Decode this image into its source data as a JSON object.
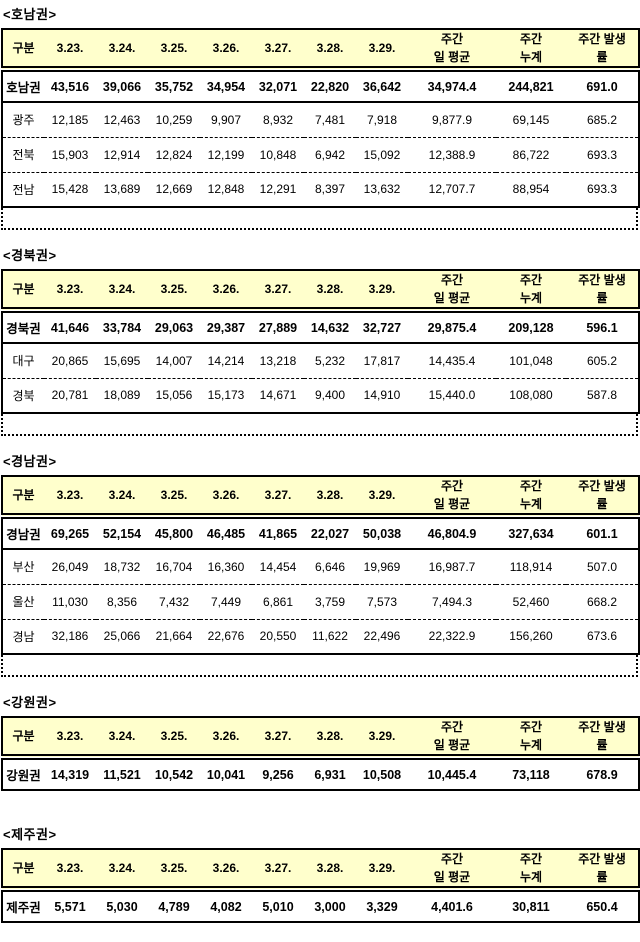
{
  "report": {
    "header_bg": "#ffffcc",
    "border_color": "#000000",
    "columns": [
      "구분",
      "3.23.",
      "3.24.",
      "3.25.",
      "3.26.",
      "3.27.",
      "3.28.",
      "3.29.",
      "주간\n일 평균",
      "주간\n누계",
      "주간 발생\n률"
    ],
    "tables": [
      {
        "title": "<호남권>",
        "trailing_dotted_row": true,
        "rows": [
          {
            "label": "호남권",
            "bold": true,
            "values": [
              "43,516",
              "39,066",
              "35,752",
              "34,954",
              "32,071",
              "22,820",
              "36,642",
              "34,974.4",
              "244,821",
              "691.0"
            ]
          },
          {
            "label": "광주",
            "bold": false,
            "values": [
              "12,185",
              "12,463",
              "10,259",
              "9,907",
              "8,932",
              "7,481",
              "7,918",
              "9,877.9",
              "69,145",
              "685.2"
            ]
          },
          {
            "label": "전북",
            "bold": false,
            "values": [
              "15,903",
              "12,914",
              "12,824",
              "12,199",
              "10,848",
              "6,942",
              "15,092",
              "12,388.9",
              "86,722",
              "693.3"
            ]
          },
          {
            "label": "전남",
            "bold": false,
            "values": [
              "15,428",
              "13,689",
              "12,669",
              "12,848",
              "12,291",
              "8,397",
              "13,632",
              "12,707.7",
              "88,954",
              "693.3"
            ]
          }
        ]
      },
      {
        "title": "<경북권>",
        "trailing_dotted_row": true,
        "rows": [
          {
            "label": "경북권",
            "bold": true,
            "values": [
              "41,646",
              "33,784",
              "29,063",
              "29,387",
              "27,889",
              "14,632",
              "32,727",
              "29,875.4",
              "209,128",
              "596.1"
            ]
          },
          {
            "label": "대구",
            "bold": false,
            "values": [
              "20,865",
              "15,695",
              "14,007",
              "14,214",
              "13,218",
              "5,232",
              "17,817",
              "14,435.4",
              "101,048",
              "605.2"
            ]
          },
          {
            "label": "경북",
            "bold": false,
            "values": [
              "20,781",
              "18,089",
              "15,056",
              "15,173",
              "14,671",
              "9,400",
              "14,910",
              "15,440.0",
              "108,080",
              "587.8"
            ]
          }
        ]
      },
      {
        "title": "<경남권>",
        "trailing_dotted_row": true,
        "rows": [
          {
            "label": "경남권",
            "bold": true,
            "values": [
              "69,265",
              "52,154",
              "45,800",
              "46,485",
              "41,865",
              "22,027",
              "50,038",
              "46,804.9",
              "327,634",
              "601.1"
            ]
          },
          {
            "label": "부산",
            "bold": false,
            "values": [
              "26,049",
              "18,732",
              "16,704",
              "16,360",
              "14,454",
              "6,646",
              "19,969",
              "16,987.7",
              "118,914",
              "507.0"
            ]
          },
          {
            "label": "울산",
            "bold": false,
            "values": [
              "11,030",
              "8,356",
              "7,432",
              "7,449",
              "6,861",
              "3,759",
              "7,573",
              "7,494.3",
              "52,460",
              "668.2"
            ]
          },
          {
            "label": "경남",
            "bold": false,
            "values": [
              "32,186",
              "25,066",
              "21,664",
              "22,676",
              "20,550",
              "11,622",
              "22,496",
              "22,322.9",
              "156,260",
              "673.6"
            ]
          }
        ]
      },
      {
        "title": "<강원권>",
        "trailing_dotted_row": false,
        "rows": [
          {
            "label": "강원권",
            "bold": true,
            "values": [
              "14,319",
              "11,521",
              "10,542",
              "10,041",
              "9,256",
              "6,931",
              "10,508",
              "10,445.4",
              "73,118",
              "678.9"
            ]
          }
        ]
      },
      {
        "title": "<제주권>",
        "trailing_dotted_row": false,
        "rows": [
          {
            "label": "제주권",
            "bold": true,
            "values": [
              "5,571",
              "5,030",
              "4,789",
              "4,082",
              "5,010",
              "3,000",
              "3,329",
              "4,401.6",
              "30,811",
              "650.4"
            ]
          }
        ]
      }
    ]
  }
}
